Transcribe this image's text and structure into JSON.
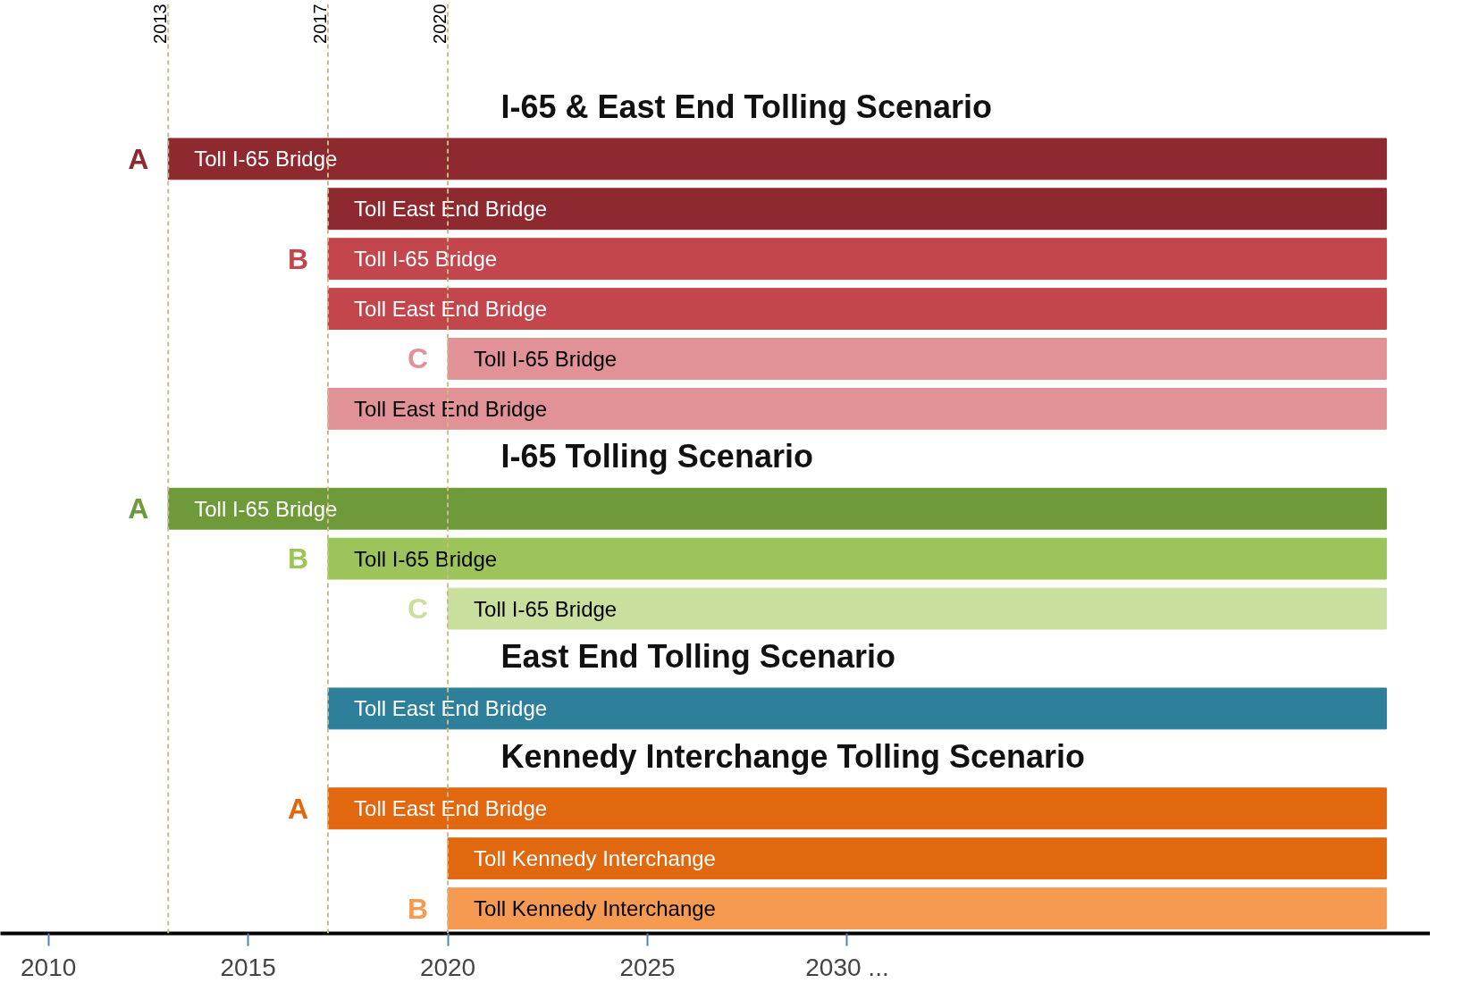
{
  "chart_data": {
    "type": "bar",
    "orientation": "horizontal",
    "categories": [
      null,
      "A",
      null,
      "B",
      null,
      "C",
      null,
      null,
      "A",
      "B",
      "C",
      null,
      null,
      null,
      "A",
      null,
      "B"
    ],
    "series": [
      {
        "name": "I-65 & East End Tolling Scenario",
        "base": [
          null,
          2013,
          2017,
          2017,
          2017,
          2020,
          2017,
          null,
          null,
          null,
          null,
          null,
          null,
          null,
          null,
          null,
          null
        ],
        "values": [
          null,
          30.5,
          26.5,
          26.5,
          26.5,
          23.5,
          26.5,
          null,
          null,
          null,
          null,
          null,
          null,
          null,
          null,
          null,
          null
        ],
        "colors": [
          null,
          "#8e2a2f",
          "#8e2a2f",
          "#c2464b",
          "#c2464b",
          "#e09296",
          "#e09296",
          null,
          null,
          null,
          null,
          null,
          null,
          null,
          null,
          null,
          null
        ],
        "value_labels": [
          null,
          "Toll I-65 Bridge",
          "Toll East End Bridge",
          "Toll I-65 Bridge",
          "Toll East End Bridge",
          "Toll I-65 Bridge",
          "Toll East End Bridge",
          null,
          null,
          null,
          null,
          null,
          null,
          null,
          null,
          null,
          null
        ]
      },
      {
        "name": "I-65 Tolling Scenario",
        "base": [
          null,
          null,
          null,
          null,
          null,
          null,
          null,
          null,
          2013,
          2017,
          2020,
          null,
          null,
          null,
          null,
          null,
          null
        ],
        "values": [
          null,
          null,
          null,
          null,
          null,
          null,
          null,
          null,
          30.5,
          26.5,
          23.5,
          null,
          null,
          null,
          null,
          null,
          null
        ],
        "colors": [
          null,
          null,
          null,
          null,
          null,
          null,
          null,
          null,
          "#6e9a3a",
          "#9cc45a",
          "#c9df9e",
          null,
          null,
          null,
          null,
          null,
          null
        ],
        "value_labels": [
          null,
          null,
          null,
          null,
          null,
          null,
          null,
          null,
          "Toll I-65 Bridge",
          "Toll I-65 Bridge",
          "Toll I-65 Bridge",
          null,
          null,
          null,
          null,
          null,
          null
        ]
      },
      {
        "name": "East End Tolling Scenario",
        "base": [
          null,
          null,
          null,
          null,
          null,
          null,
          null,
          null,
          null,
          null,
          null,
          null,
          2017,
          null,
          null,
          null,
          null
        ],
        "values": [
          null,
          null,
          null,
          null,
          null,
          null,
          null,
          null,
          null,
          null,
          null,
          null,
          26.5,
          null,
          null,
          null,
          null
        ],
        "colors": [
          null,
          null,
          null,
          null,
          null,
          null,
          null,
          null,
          null,
          null,
          null,
          null,
          "#2e7f9a",
          null,
          null,
          null,
          null
        ],
        "value_labels": [
          null,
          null,
          null,
          null,
          null,
          null,
          null,
          null,
          null,
          null,
          null,
          null,
          "Toll East End Bridge",
          null,
          null,
          null,
          null
        ]
      },
      {
        "name": "Kennedy Interchange Tolling Scenario",
        "base": [
          null,
          null,
          null,
          null,
          null,
          null,
          null,
          null,
          null,
          null,
          null,
          null,
          null,
          null,
          2017,
          2020,
          2020
        ],
        "values": [
          null,
          null,
          null,
          null,
          null,
          null,
          null,
          null,
          null,
          null,
          null,
          null,
          null,
          null,
          26.5,
          23.5,
          23.5
        ],
        "colors": [
          null,
          null,
          null,
          null,
          null,
          null,
          null,
          null,
          null,
          null,
          null,
          null,
          null,
          null,
          "#e2680f",
          "#e2680f",
          "#f59a50"
        ],
        "value_labels": [
          null,
          null,
          null,
          null,
          null,
          null,
          null,
          null,
          null,
          null,
          null,
          null,
          null,
          null,
          "Toll East End Bridge",
          "Toll Kennedy Interchange",
          "Toll Kennedy Interchange"
        ]
      }
    ],
    "xlim": [
      2008.8,
      2044.6
    ],
    "xticks": [
      2010,
      2015,
      2020,
      2025,
      {
        "value": 2030,
        "label": "2030 ..."
      }
    ],
    "ref_lines": [
      {
        "axis": "x",
        "value": 2013,
        "label": "2013",
        "color": "#c9bd8e",
        "line_style": "dashed"
      },
      {
        "axis": "x",
        "value": 2017,
        "label": "2017",
        "color": "#c9bd8e",
        "line_style": "dashed"
      },
      {
        "axis": "x",
        "value": 2020,
        "label": "2020",
        "color": "#c9bd8e",
        "line_style": "dashed"
      }
    ]
  }
}
